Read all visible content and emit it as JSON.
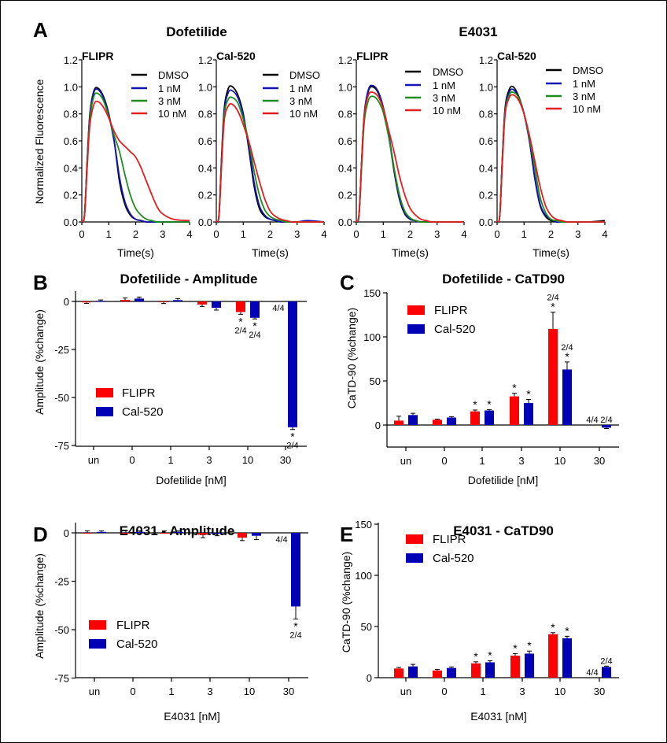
{
  "figure": {
    "panel_letters": [
      "A",
      "B",
      "C",
      "D",
      "E"
    ],
    "group_titles": [
      "Dofetilide",
      "E4031"
    ],
    "trace_ylabel": "Normalized  Fluorescence"
  },
  "chart_data": [
    {
      "type": "line",
      "panel": "A",
      "group": "Dofetilide",
      "title": "FLIPR",
      "xlabel": "Time(s)",
      "xlim": [
        0,
        4
      ],
      "ylim": [
        0,
        1.2
      ],
      "xticks": [
        "0",
        "1",
        "2",
        "3",
        "4"
      ],
      "yticks": [
        "0.0",
        "0.2",
        "0.4",
        "0.6",
        "0.8",
        "1.0",
        "1.2"
      ],
      "legend": "top-right",
      "x": [
        0,
        0.1,
        0.2,
        0.3,
        0.45,
        0.6,
        0.8,
        1.0,
        1.2,
        1.4,
        1.6,
        1.8,
        2.0,
        2.2,
        2.4,
        2.6,
        2.8,
        3.0,
        3.4,
        4.0
      ],
      "series": [
        {
          "name": "DMSO",
          "color": "#000000",
          "values": [
            0,
            0.05,
            0.45,
            0.8,
            0.97,
            0.99,
            0.93,
            0.8,
            0.6,
            0.3,
            0.13,
            0.05,
            0.02,
            0.01,
            0,
            0,
            0,
            0,
            0,
            0
          ]
        },
        {
          "name": "1 nM",
          "color": "#1414b4",
          "values": [
            0,
            0.05,
            0.44,
            0.79,
            0.96,
            0.98,
            0.92,
            0.79,
            0.6,
            0.33,
            0.15,
            0.06,
            0.02,
            0.01,
            0,
            0,
            0,
            0,
            0,
            0
          ]
        },
        {
          "name": "3 nM",
          "color": "#1e8c1e",
          "values": [
            0,
            0.05,
            0.42,
            0.76,
            0.93,
            0.95,
            0.9,
            0.78,
            0.64,
            0.52,
            0.35,
            0.2,
            0.1,
            0.05,
            0.02,
            0.01,
            0,
            0,
            0,
            0
          ]
        },
        {
          "name": "10 nM",
          "color": "#e41e1e",
          "values": [
            0,
            0.05,
            0.4,
            0.72,
            0.87,
            0.89,
            0.85,
            0.77,
            0.67,
            0.6,
            0.56,
            0.52,
            0.48,
            0.4,
            0.3,
            0.2,
            0.11,
            0.06,
            0.02,
            0.01
          ]
        }
      ]
    },
    {
      "type": "line",
      "panel": "A",
      "group": "Dofetilide",
      "title": "Cal-520",
      "xlabel": "Time(s)",
      "xlim": [
        0,
        4
      ],
      "ylim": [
        0,
        1.2
      ],
      "xticks": [
        "0",
        "1",
        "2",
        "3",
        "4"
      ],
      "yticks": [
        "0.0",
        "0.2",
        "0.4",
        "0.6",
        "0.8",
        "1.0",
        "1.2"
      ],
      "legend": "top-right",
      "x": [
        0,
        0.1,
        0.2,
        0.3,
        0.45,
        0.6,
        0.8,
        1.0,
        1.2,
        1.4,
        1.6,
        1.8,
        2.0,
        2.2,
        2.4,
        2.6,
        2.8,
        3.0,
        3.4,
        4.0
      ],
      "series": [
        {
          "name": "DMSO",
          "color": "#000000",
          "values": [
            0,
            0.05,
            0.5,
            0.85,
            0.99,
            1.0,
            0.94,
            0.8,
            0.55,
            0.27,
            0.1,
            0.04,
            0.02,
            0.01,
            0,
            0,
            0,
            0,
            0,
            0
          ]
        },
        {
          "name": "1 nM",
          "color": "#1414b4",
          "values": [
            0,
            0.05,
            0.48,
            0.83,
            0.96,
            0.97,
            0.92,
            0.79,
            0.57,
            0.3,
            0.12,
            0.05,
            0.02,
            0.01,
            0,
            0,
            0,
            0,
            0.01,
            0
          ]
        },
        {
          "name": "3 nM",
          "color": "#1e8c1e",
          "values": [
            0,
            0.05,
            0.46,
            0.8,
            0.91,
            0.92,
            0.88,
            0.76,
            0.6,
            0.38,
            0.2,
            0.09,
            0.04,
            0.02,
            0.01,
            0,
            0,
            0,
            0,
            0
          ]
        },
        {
          "name": "10 nM",
          "color": "#e41e1e",
          "values": [
            0,
            0.05,
            0.44,
            0.76,
            0.86,
            0.87,
            0.82,
            0.72,
            0.6,
            0.45,
            0.3,
            0.17,
            0.08,
            0.04,
            0.02,
            0.01,
            0,
            0,
            0,
            0
          ]
        }
      ]
    },
    {
      "type": "line",
      "panel": "A",
      "group": "E4031",
      "title": "FLIPR",
      "xlabel": "Time(s)",
      "xlim": [
        0,
        4
      ],
      "ylim": [
        0,
        1.2
      ],
      "xticks": [
        "0",
        "1",
        "2",
        "3",
        "4"
      ],
      "yticks": [
        "0.0",
        "0.2",
        "0.4",
        "0.6",
        "0.8",
        "1.0",
        "1.2"
      ],
      "legend": "top-right",
      "x": [
        0,
        0.1,
        0.2,
        0.3,
        0.45,
        0.6,
        0.8,
        1.0,
        1.2,
        1.4,
        1.6,
        1.8,
        2.0,
        2.2,
        2.4,
        2.6,
        2.8,
        3.0,
        3.4,
        4.0
      ],
      "series": [
        {
          "name": "DMSO",
          "color": "#000000",
          "values": [
            0,
            0.05,
            0.45,
            0.8,
            0.97,
            1.0,
            0.96,
            0.84,
            0.64,
            0.38,
            0.17,
            0.06,
            0.02,
            0.01,
            0,
            0,
            0,
            0,
            0,
            0
          ]
        },
        {
          "name": "1 nM",
          "color": "#1414b4",
          "values": [
            0,
            0.05,
            0.46,
            0.81,
            0.98,
            1.01,
            0.97,
            0.85,
            0.65,
            0.4,
            0.18,
            0.07,
            0.02,
            0.01,
            0,
            0,
            0,
            0,
            0,
            0
          ]
        },
        {
          "name": "3 nM",
          "color": "#1e8c1e",
          "values": [
            0,
            0.05,
            0.42,
            0.75,
            0.9,
            0.93,
            0.9,
            0.81,
            0.63,
            0.4,
            0.2,
            0.08,
            0.03,
            0.01,
            0,
            0,
            0,
            0,
            0,
            0
          ]
        },
        {
          "name": "10 nM",
          "color": "#e41e1e",
          "values": [
            0,
            0.06,
            0.46,
            0.8,
            0.94,
            0.96,
            0.93,
            0.84,
            0.68,
            0.52,
            0.34,
            0.2,
            0.1,
            0.05,
            0.02,
            0.01,
            0,
            0,
            0,
            0
          ]
        }
      ]
    },
    {
      "type": "line",
      "panel": "A",
      "group": "E4031",
      "title": "Cal-520",
      "xlabel": "Time(s)",
      "xlim": [
        0,
        4
      ],
      "ylim": [
        0,
        1.2
      ],
      "xticks": [
        "0",
        "1",
        "2",
        "3",
        "4"
      ],
      "yticks": [
        "0.0",
        "0.2",
        "0.4",
        "0.6",
        "0.8",
        "1.0",
        "1.2"
      ],
      "legend": "top-right",
      "x": [
        0,
        0.1,
        0.2,
        0.3,
        0.45,
        0.6,
        0.8,
        1.0,
        1.2,
        1.4,
        1.6,
        1.8,
        2.0,
        2.2,
        2.4,
        2.6,
        2.8,
        3.0,
        3.4,
        4.0
      ],
      "series": [
        {
          "name": "DMSO",
          "color": "#000000",
          "values": [
            0,
            0.05,
            0.5,
            0.85,
            0.98,
            1.0,
            0.93,
            0.8,
            0.6,
            0.32,
            0.12,
            0.04,
            0.01,
            0,
            0,
            0,
            0,
            0,
            0,
            0.01
          ]
        },
        {
          "name": "1 nM",
          "color": "#1414b4",
          "values": [
            0,
            0.05,
            0.49,
            0.84,
            0.96,
            0.98,
            0.92,
            0.8,
            0.6,
            0.33,
            0.13,
            0.05,
            0.02,
            0,
            0,
            0,
            0,
            0,
            0,
            0
          ]
        },
        {
          "name": "3 nM",
          "color": "#1e8c1e",
          "values": [
            0,
            0.05,
            0.48,
            0.82,
            0.94,
            0.96,
            0.92,
            0.8,
            0.62,
            0.4,
            0.18,
            0.07,
            0.02,
            0.01,
            0,
            0,
            0,
            0,
            0,
            0
          ]
        },
        {
          "name": "10 nM",
          "color": "#e41e1e",
          "values": [
            0,
            0.05,
            0.46,
            0.8,
            0.92,
            0.94,
            0.9,
            0.8,
            0.64,
            0.45,
            0.26,
            0.12,
            0.05,
            0.02,
            0.01,
            0,
            0,
            0,
            0,
            0
          ]
        }
      ]
    },
    {
      "type": "bar",
      "panel": "B",
      "title": "Dofetilide - Amplitude",
      "xlabel": "Dofetilide [nM]",
      "ylabel": "Amplitude (%change)",
      "categories": [
        "un",
        "0",
        "1",
        "3",
        "10",
        "30"
      ],
      "ylim": [
        -75,
        5
      ],
      "yticks": [
        "0",
        "-25",
        "-50",
        "-75"
      ],
      "ytick_values": [
        0,
        -25,
        -50,
        -75
      ],
      "legend": "bottom-left",
      "series": [
        {
          "name": "FLIPR",
          "color": "#ff0000",
          "values": [
            -0.5,
            0.8,
            -0.3,
            -1.6,
            -5.5,
            null
          ],
          "errors": [
            0.5,
            1,
            0.8,
            1,
            1.2,
            null
          ]
        },
        {
          "name": "Cal-520",
          "color": "#0000b4",
          "values": [
            0.3,
            1.5,
            0.7,
            -3.3,
            -8.5,
            -65.5
          ],
          "errors": [
            0.5,
            0.8,
            0.8,
            1.2,
            0.6,
            1.2
          ]
        }
      ],
      "annotations": [
        {
          "category": "10",
          "series": "FLIPR",
          "lines": [
            "*",
            "2/4"
          ]
        },
        {
          "category": "10",
          "series": "Cal-520",
          "lines": [
            "*",
            "2/4"
          ]
        },
        {
          "category": "30",
          "series": "FLIPR",
          "lines": [
            "4/4"
          ]
        },
        {
          "category": "30",
          "series": "Cal-520",
          "lines": [
            "*",
            "2/4"
          ]
        }
      ]
    },
    {
      "type": "bar",
      "panel": "C",
      "title": "Dofetilide - CaTD90",
      "xlabel": "Dofetilide [nM]",
      "ylabel": "CaTD-90 (%change)",
      "categories": [
        "un",
        "0",
        "1",
        "3",
        "10",
        "30"
      ],
      "ylim": [
        -25,
        150
      ],
      "yticks": [
        "0",
        "50",
        "100",
        "150"
      ],
      "ytick_values": [
        0,
        50,
        100,
        150
      ],
      "legend": "top-left",
      "series": [
        {
          "name": "FLIPR",
          "color": "#ff0000",
          "values": [
            5,
            6,
            15.5,
            32.5,
            109,
            null
          ],
          "errors": [
            5,
            0.7,
            1.5,
            3.5,
            19,
            null
          ]
        },
        {
          "name": "Cal-520",
          "color": "#0000b4",
          "values": [
            11.3,
            8.5,
            16.5,
            25,
            63,
            -3
          ],
          "errors": [
            2,
            1,
            1,
            4,
            8.5,
            1
          ]
        }
      ],
      "annotations": [
        {
          "category": "1",
          "series": "FLIPR",
          "lines": [
            "*"
          ]
        },
        {
          "category": "1",
          "series": "Cal-520",
          "lines": [
            "*"
          ]
        },
        {
          "category": "3",
          "series": "FLIPR",
          "lines": [
            "*"
          ]
        },
        {
          "category": "3",
          "series": "Cal-520",
          "lines": [
            "*"
          ]
        },
        {
          "category": "10",
          "series": "FLIPR",
          "lines": [
            "*",
            "2/4"
          ]
        },
        {
          "category": "10",
          "series": "Cal-520",
          "lines": [
            "*",
            "2/4"
          ]
        },
        {
          "category": "30",
          "series": "FLIPR",
          "lines": [
            "4/4"
          ]
        },
        {
          "category": "30",
          "series": "Cal-520",
          "lines": [
            "2/4"
          ]
        }
      ]
    },
    {
      "type": "bar",
      "panel": "D",
      "title": "E4031 - Amplitude",
      "xlabel": "E4031 [nM]",
      "ylabel": "Amplitude (%change)",
      "categories": [
        "un",
        "0",
        "1",
        "3",
        "10",
        "30"
      ],
      "ylim": [
        -75,
        5
      ],
      "yticks": [
        "0",
        "-25",
        "-50",
        "-75"
      ],
      "ytick_values": [
        0,
        -25,
        -50,
        -75
      ],
      "legend": "bottom-left",
      "series": [
        {
          "name": "FLIPR",
          "color": "#ff0000",
          "values": [
            0,
            0,
            0,
            -1,
            -2.5,
            null
          ],
          "errors": [
            1,
            1.2,
            1,
            1.5,
            1.5,
            null
          ]
        },
        {
          "name": "Cal-520",
          "color": "#0000b4",
          "values": [
            0.5,
            0.5,
            0.5,
            -0.2,
            -1.5,
            -38
          ],
          "errors": [
            0.5,
            0.5,
            0.5,
            1.3,
            2,
            6.5
          ]
        }
      ],
      "annotations": [
        {
          "category": "30",
          "series": "FLIPR",
          "lines": [
            "4/4"
          ]
        },
        {
          "category": "30",
          "series": "Cal-520",
          "lines": [
            "*",
            "2/4"
          ]
        }
      ]
    },
    {
      "type": "bar",
      "panel": "E",
      "title": "E4031 - CaTD90",
      "xlabel": "E4031 [nM]",
      "ylabel": "CaTD-90 (%change)",
      "categories": [
        "un",
        "0",
        "1",
        "3",
        "10",
        "30"
      ],
      "ylim": [
        0,
        150
      ],
      "yticks": [
        "0",
        "50",
        "100",
        "150"
      ],
      "ytick_values": [
        0,
        50,
        100,
        150
      ],
      "legend": "top-left",
      "series": [
        {
          "name": "FLIPR",
          "color": "#ff0000",
          "values": [
            9,
            7,
            14,
            21.5,
            42.5,
            null
          ],
          "errors": [
            1,
            1,
            1.5,
            2,
            1.5,
            null
          ]
        },
        {
          "name": "Cal-520",
          "color": "#0000b4",
          "values": [
            11,
            9.5,
            15,
            23.5,
            38.5,
            10.5
          ],
          "errors": [
            2,
            1,
            1.5,
            2.5,
            2,
            0.8
          ]
        }
      ],
      "annotations": [
        {
          "category": "1",
          "series": "FLIPR",
          "lines": [
            "*"
          ]
        },
        {
          "category": "1",
          "series": "Cal-520",
          "lines": [
            "*"
          ]
        },
        {
          "category": "3",
          "series": "FLIPR",
          "lines": [
            "*"
          ]
        },
        {
          "category": "3",
          "series": "Cal-520",
          "lines": [
            "*"
          ]
        },
        {
          "category": "10",
          "series": "FLIPR",
          "lines": [
            "*"
          ]
        },
        {
          "category": "10",
          "series": "Cal-520",
          "lines": [
            "*"
          ]
        },
        {
          "category": "30",
          "series": "FLIPR",
          "lines": [
            "4/4"
          ]
        },
        {
          "category": "30",
          "series": "Cal-520",
          "lines": [
            "2/4"
          ]
        }
      ]
    }
  ]
}
